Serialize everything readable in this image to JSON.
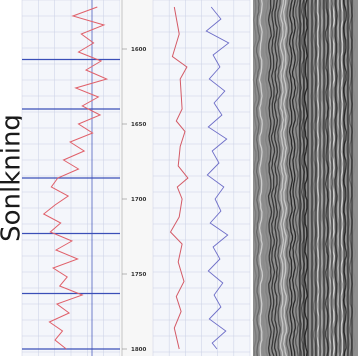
{
  "side_label": "Sonlkning",
  "colors": {
    "log_curve": "#e0606a",
    "marker_line": "#3b4fb8",
    "resistivity": "#d45a66",
    "density": "#6e6ec8",
    "grid": "#c9cfe4",
    "seismic_bg": "#8f8f8f"
  },
  "chart_data": [
    {
      "type": "line",
      "title": "",
      "xlabel": "",
      "ylabel": "",
      "y_axis": "depth",
      "y_ticks": [
        "1600",
        "1650",
        "1700",
        "1750",
        "1800"
      ],
      "ylim": [
        1570,
        1802
      ],
      "marker_depths": [
        1607,
        1640,
        1686,
        1723,
        1763,
        1800
      ],
      "series": [
        {
          "depth": [
            1572,
            1578,
            1584,
            1590,
            1596,
            1602,
            1608,
            1614,
            1620,
            1626,
            1632,
            1638,
            1644,
            1650,
            1656,
            1662,
            1668,
            1674,
            1680,
            1686,
            1692,
            1698,
            1704,
            1710,
            1716,
            1722,
            1728,
            1734,
            1740,
            1746,
            1752,
            1758,
            1764,
            1770,
            1776,
            1782,
            1788,
            1794,
            1800
          ],
          "values": [
            0.78,
            0.52,
            0.85,
            0.61,
            0.74,
            0.58,
            0.82,
            0.66,
            0.88,
            0.55,
            0.79,
            0.62,
            0.81,
            0.58,
            0.73,
            0.49,
            0.64,
            0.42,
            0.58,
            0.36,
            0.29,
            0.47,
            0.33,
            0.21,
            0.39,
            0.28,
            0.51,
            0.34,
            0.57,
            0.31,
            0.46,
            0.38,
            0.62,
            0.35,
            0.48,
            0.27,
            0.41,
            0.33,
            0.45
          ]
        }
      ]
    },
    {
      "type": "line",
      "title": "",
      "y_axis": "depth",
      "ylim": [
        1570,
        1802
      ],
      "series": [
        {
          "depth": [
            1572,
            1590,
            1605,
            1612,
            1620,
            1640,
            1648,
            1655,
            1665,
            1678,
            1686,
            1692,
            1700,
            1712,
            1722,
            1730,
            1742,
            1755,
            1765,
            1775,
            1786,
            1800
          ],
          "values": [
            0.22,
            0.27,
            0.2,
            0.35,
            0.28,
            0.3,
            0.24,
            0.33,
            0.28,
            0.26,
            0.36,
            0.25,
            0.3,
            0.27,
            0.18,
            0.3,
            0.26,
            0.32,
            0.24,
            0.29,
            0.22,
            0.27
          ]
        },
        {
          "depth": [
            1572,
            1580,
            1588,
            1596,
            1604,
            1612,
            1620,
            1628,
            1636,
            1644,
            1652,
            1660,
            1668,
            1676,
            1684,
            1692,
            1700,
            1708,
            1716,
            1724,
            1732,
            1740,
            1748,
            1756,
            1764,
            1772,
            1780,
            1788,
            1796,
            1800
          ],
          "values": [
            0.6,
            0.7,
            0.55,
            0.78,
            0.62,
            0.69,
            0.58,
            0.74,
            0.63,
            0.71,
            0.57,
            0.76,
            0.61,
            0.68,
            0.56,
            0.73,
            0.64,
            0.7,
            0.59,
            0.77,
            0.62,
            0.69,
            0.57,
            0.72,
            0.63,
            0.7,
            0.58,
            0.75,
            0.61,
            0.66
          ]
        }
      ]
    },
    {
      "type": "heatmap",
      "title": "",
      "description": "seismic wiggle traces (gray variable-density section)",
      "ylim": [
        1570,
        1802
      ]
    }
  ]
}
